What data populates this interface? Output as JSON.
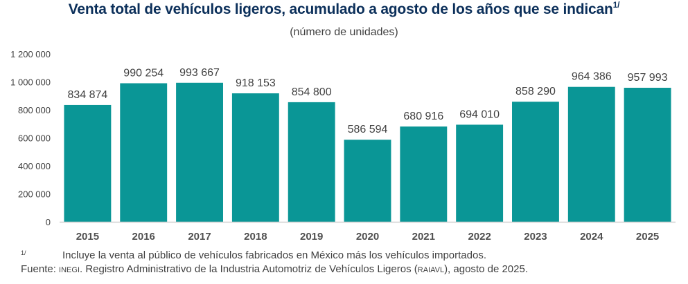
{
  "chart_data": {
    "type": "bar",
    "title": "Venta total de vehículos ligeros, acumulado a agosto de los años que se indican",
    "title_superscript": "1/",
    "subtitle": "(número de unidades)",
    "xlabel": "",
    "ylabel": "",
    "categories": [
      "2015",
      "2016",
      "2017",
      "2018",
      "2019",
      "2020",
      "2021",
      "2022",
      "2023",
      "2024",
      "2025"
    ],
    "values": [
      834874,
      990254,
      993667,
      918153,
      854800,
      586594,
      680916,
      694010,
      858290,
      964386,
      957993
    ],
    "value_labels": [
      "834 874",
      "990 254",
      "993 667",
      "918 153",
      "854 800",
      "586 594",
      "680 916",
      "694 010",
      "858 290",
      "964 386",
      "957 993"
    ],
    "ylim": [
      0,
      1200000
    ],
    "yticks": [
      0,
      200000,
      400000,
      600000,
      800000,
      1000000,
      1200000
    ],
    "ytick_labels": [
      "0",
      "200 000",
      "400 000",
      "600 000",
      "800 000",
      "1 000 000",
      "1 200 000"
    ],
    "grid": false,
    "legend": "none",
    "colors": {
      "bar": "#0a9696",
      "title": "#0b2f5a",
      "text": "#404040",
      "axis": "#d0d0d0"
    }
  },
  "notes": {
    "footnote_mark": "1/",
    "footnote_text": "Incluye la venta al público de vehículos fabricados en México más los vehículos importados.",
    "source_prefix": "Fuente: ",
    "source_org": "INEGI",
    "source_mid": ". Registro Administrativo de la Industria Automotriz de Vehículos Ligeros (",
    "source_abbr": "RAIAVL",
    "source_end": "), agosto de 2025."
  }
}
